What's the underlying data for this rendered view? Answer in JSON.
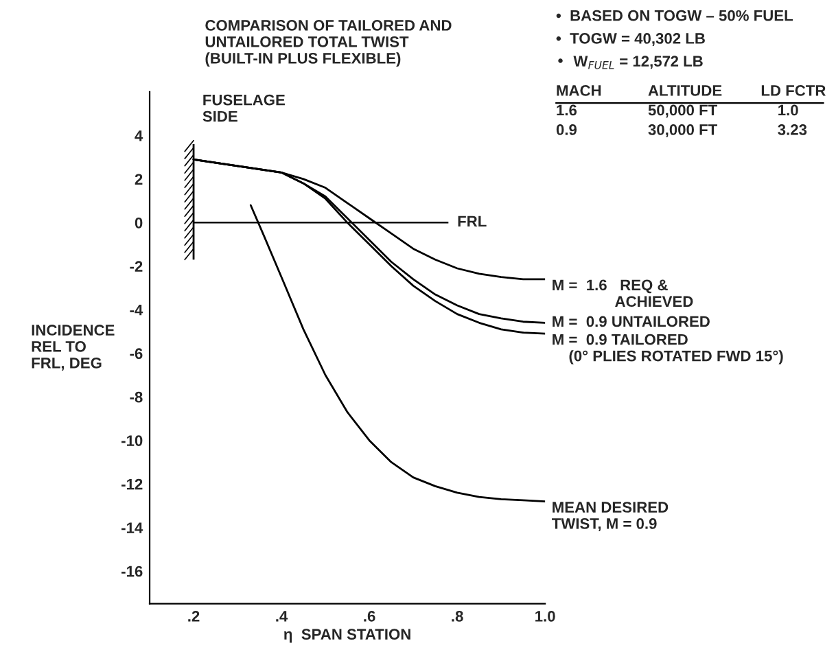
{
  "chart_data": {
    "type": "line",
    "title": "COMPARISON OF TAILORED AND\nUNTAILORED TOTAL TWIST\n(BUILT-IN PLUS FLEXIBLE)",
    "xlabel": "η  SPAN STATION",
    "ylabel": "INCIDENCE\nREL TO\nFRL, DEG",
    "xlim": [
      0.1,
      1.0
    ],
    "ylim": [
      -17.5,
      6
    ],
    "xticks": [
      {
        "value": 0.2,
        "label": ".2"
      },
      {
        "value": 0.4,
        "label": ".4"
      },
      {
        "value": 0.6,
        "label": ".6"
      },
      {
        "value": 0.8,
        "label": ".8"
      },
      {
        "value": 1.0,
        "label": "1.0"
      }
    ],
    "yticks": [
      -16,
      -14,
      -12,
      -10,
      -8,
      -6,
      -4,
      -2,
      0,
      2,
      4
    ],
    "grid": false,
    "legend": false,
    "marker": "none",
    "line_style": "solid",
    "series": [
      {
        "name": "M =  1.6   REQ &\n               ACHIEVED",
        "color": "#000000",
        "x": [
          0.2,
          0.3,
          0.4,
          0.45,
          0.5,
          0.55,
          0.6,
          0.65,
          0.7,
          0.75,
          0.8,
          0.85,
          0.9,
          0.95,
          1.0
        ],
        "values": [
          2.9,
          2.6,
          2.3,
          2.0,
          1.6,
          0.9,
          0.2,
          -0.5,
          -1.2,
          -1.7,
          -2.1,
          -2.35,
          -2.5,
          -2.6,
          -2.6
        ]
      },
      {
        "name": "M =  0.9 UNTAILORED",
        "color": "#000000",
        "x": [
          0.2,
          0.3,
          0.4,
          0.45,
          0.5,
          0.55,
          0.6,
          0.65,
          0.7,
          0.75,
          0.8,
          0.85,
          0.9,
          0.95,
          1.0
        ],
        "values": [
          2.9,
          2.6,
          2.3,
          1.8,
          1.2,
          0.2,
          -0.8,
          -1.8,
          -2.6,
          -3.3,
          -3.8,
          -4.2,
          -4.4,
          -4.55,
          -4.6
        ]
      },
      {
        "name": "M =  0.9 TAILORED\n    (0° PLIES ROTATED FWD 15°)",
        "color": "#000000",
        "x": [
          0.2,
          0.3,
          0.4,
          0.45,
          0.5,
          0.55,
          0.6,
          0.65,
          0.7,
          0.75,
          0.8,
          0.85,
          0.9,
          0.95,
          1.0
        ],
        "values": [
          2.9,
          2.6,
          2.3,
          1.8,
          1.1,
          0.0,
          -1.0,
          -2.0,
          -2.9,
          -3.6,
          -4.2,
          -4.6,
          -4.9,
          -5.05,
          -5.1
        ]
      },
      {
        "name": "MEAN DESIRED\nTWIST, M = 0.9",
        "color": "#000000",
        "x": [
          0.33,
          0.36,
          0.4,
          0.45,
          0.5,
          0.55,
          0.6,
          0.65,
          0.7,
          0.75,
          0.8,
          0.85,
          0.9,
          0.95,
          1.0
        ],
        "values": [
          0.8,
          -0.6,
          -2.5,
          -4.9,
          -7.0,
          -8.7,
          -10.0,
          -11.0,
          -11.7,
          -12.1,
          -12.4,
          -12.6,
          -12.7,
          -12.75,
          -12.8
        ]
      }
    ],
    "ref_lines": [
      {
        "axis": "y",
        "value": 0,
        "label": "FRL"
      }
    ],
    "annotations": [
      "FUSELAGE\nSIDE",
      "•  BASED ON TOGW – 50% FUEL",
      "•  TOGW = 40,302 LB",
      "•  W$_{FUEL}$ = 12,572 LB",
      "MACH",
      "ALTITUDE",
      "LD FCTR",
      "1.6",
      "50,000 FT",
      "1.0",
      "0.9",
      "30,000 FT",
      "3.23"
    ]
  }
}
